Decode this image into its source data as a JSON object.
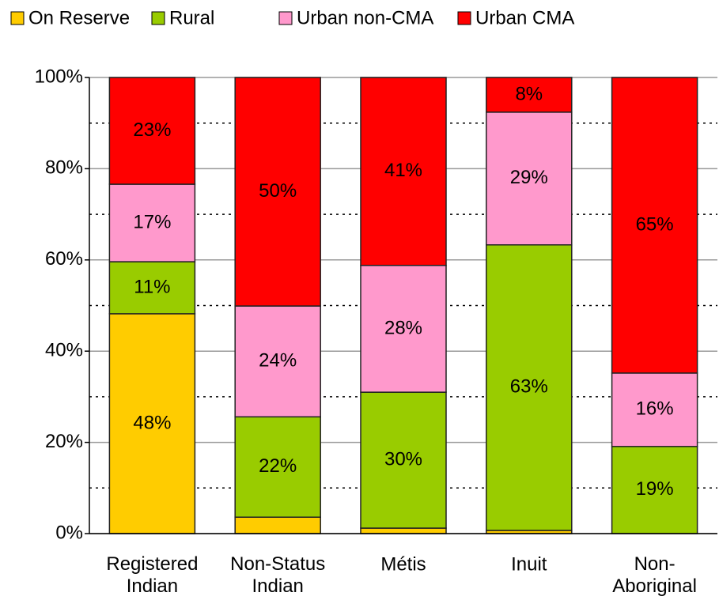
{
  "chart_data": {
    "type": "stacked_bar",
    "categories": [
      "Registered\nIndian",
      "Non-Status\nIndian",
      "Métis",
      "Inuit",
      "Non-\nAboriginal"
    ],
    "series": [
      {
        "name": "On Reserve",
        "color": "#ffcc00",
        "values": [
          48.2,
          3.6,
          1.2,
          0.7,
          0
        ],
        "value_labels": [
          "48%",
          null,
          null,
          null,
          null
        ]
      },
      {
        "name": "Rural",
        "color": "#99cc00",
        "values": [
          11.4,
          22.0,
          29.8,
          62.6,
          19.1
        ],
        "value_labels": [
          "11%",
          "22%",
          "30%",
          "63%",
          "19%"
        ]
      },
      {
        "name": "Urban non-CMA",
        "color": "#ff99cc",
        "values": [
          17.0,
          24.3,
          27.8,
          29.1,
          16.1
        ],
        "value_labels": [
          "17%",
          "24%",
          "28%",
          "29%",
          "16%"
        ]
      },
      {
        "name": "Urban CMA",
        "color": "#ff0000",
        "values": [
          23.4,
          50.1,
          41.2,
          7.6,
          64.8
        ],
        "value_labels": [
          "23%",
          "50%",
          "41%",
          "8%",
          "65%"
        ]
      }
    ],
    "ylim": [
      0,
      100
    ],
    "yticks": [
      {
        "value": 0,
        "label": "0%"
      },
      {
        "value": 20,
        "label": "20%"
      },
      {
        "value": 40,
        "label": "40%"
      },
      {
        "value": 60,
        "label": "60%"
      },
      {
        "value": 80,
        "label": "80%"
      },
      {
        "value": 100,
        "label": "100%"
      }
    ],
    "minor_yticks": [
      10,
      30,
      50,
      70,
      90
    ],
    "grid": true,
    "legend": "top"
  }
}
